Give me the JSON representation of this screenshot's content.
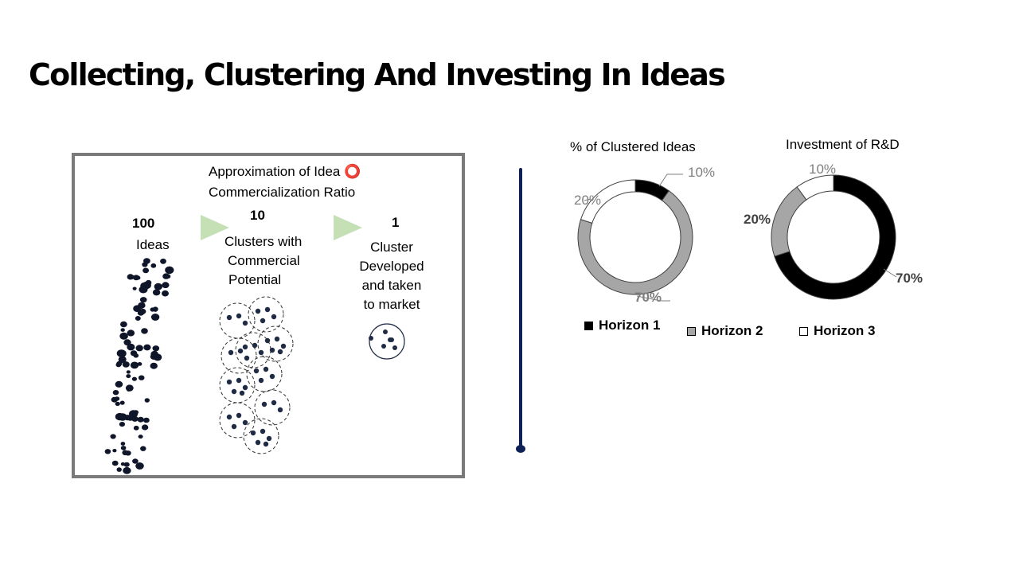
{
  "title": "Collecting, Clustering And Investing In Ideas",
  "panel": {
    "heading_line1": "Approximation of Idea ⭕",
    "heading_line2": "Commercialization Ratio",
    "stages": [
      {
        "count": "100",
        "label_lines": [
          "Ideas"
        ]
      },
      {
        "count": "10",
        "label_lines": [
          "Clusters  with",
          "Commercial",
          "Potential"
        ]
      },
      {
        "count": "1",
        "label_lines": [
          "Cluster",
          "Developed",
          "and taken",
          "to market"
        ]
      }
    ],
    "arrow_color": "#c5e0b4",
    "dot_color": "#1f2a44"
  },
  "legend": [
    {
      "name": "Horizon 1",
      "color": "#000000"
    },
    {
      "name": "Horizon 2",
      "color": "#a6a6a6"
    },
    {
      "name": "Horizon 3",
      "color": "#ffffff"
    }
  ],
  "chart_data": [
    {
      "type": "pie",
      "title": "% of Clustered  Ideas",
      "categories": [
        "Horizon 1",
        "Horizon 2",
        "Horizon 3"
      ],
      "values": [
        10,
        70,
        20
      ],
      "labels": [
        "10%",
        "70%",
        "20%"
      ],
      "colors": [
        "#000000",
        "#a6a6a6",
        "#ffffff"
      ],
      "donut": true
    },
    {
      "type": "pie",
      "title": "Investment  of R&D",
      "categories": [
        "Horizon 1",
        "Horizon 2",
        "Horizon 3"
      ],
      "values": [
        70,
        20,
        10
      ],
      "labels": [
        "70%",
        "20%",
        "10%"
      ],
      "colors": [
        "#000000",
        "#a6a6a6",
        "#ffffff"
      ],
      "donut": true
    }
  ]
}
